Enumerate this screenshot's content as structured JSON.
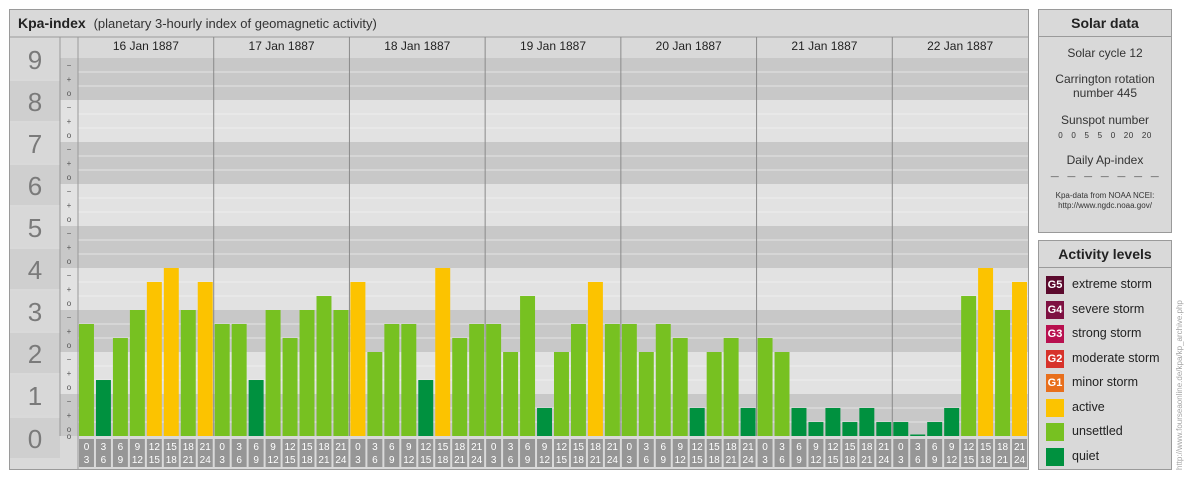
{
  "title": "Kpa-index",
  "subtitle": "(planetary 3-hourly index of geomagnetic activity)",
  "chart_data": {
    "type": "bar",
    "ylim": [
      0,
      9
    ],
    "y_ticks": [
      "0",
      "1",
      "2",
      "3",
      "4",
      "5",
      "6",
      "7",
      "8",
      "9"
    ],
    "minor_ticks": [
      "o",
      "+",
      "−"
    ],
    "days": [
      "16 Jan 1887",
      "17 Jan 1887",
      "18 Jan 1887",
      "19 Jan 1887",
      "20 Jan 1887",
      "21 Jan 1887",
      "22 Jan 1887"
    ],
    "interval_labels": [
      [
        "0",
        "3"
      ],
      [
        "3",
        "6"
      ],
      [
        "6",
        "9"
      ],
      [
        "9",
        "12"
      ],
      [
        "12",
        "15"
      ],
      [
        "15",
        "18"
      ],
      [
        "18",
        "21"
      ],
      [
        "21",
        "24"
      ]
    ],
    "values": [
      2.667,
      1.333,
      2.333,
      3.0,
      3.667,
      4.0,
      3.0,
      3.667,
      2.667,
      2.667,
      1.333,
      3.0,
      2.333,
      3.0,
      3.333,
      3.0,
      3.667,
      2.0,
      2.667,
      2.667,
      1.333,
      4.0,
      2.333,
      2.667,
      2.667,
      2.0,
      3.333,
      0.667,
      2.0,
      2.667,
      3.667,
      2.667,
      2.667,
      2.0,
      2.667,
      2.333,
      0.667,
      2.0,
      2.333,
      0.667,
      2.333,
      2.0,
      0.667,
      0.333,
      0.667,
      0.333,
      0.667,
      0.333,
      0.333,
      0.0,
      0.333,
      0.667,
      3.333,
      4.0,
      3.0,
      3.667
    ],
    "colors": {
      "quiet": "#00913f",
      "unsettled": "#77c121",
      "active": "#fcc300",
      "band_dark": "#c8c8c8",
      "band_light": "#e2e2e2",
      "axis_box": "#969696"
    }
  },
  "solar": {
    "header": "Solar data",
    "cycle": "Solar cycle 12",
    "carrington_line1": "Carrington rotation",
    "carrington_line2": "number 445",
    "sunspot_title": "Sunspot number",
    "sunspot_values": "0   0   5   5   0   20   20",
    "ap_title": "Daily Ap-index",
    "ap_values": "—   —   —   —   —   —   —",
    "credit_line1": "Kpa-data from NOAA NCEI:",
    "credit_line2": "http://www.ngdc.noaa.gov/"
  },
  "activity": {
    "header": "Activity levels",
    "levels": [
      {
        "code": "G5",
        "label": "extreme storm",
        "color": "#5b0a2d"
      },
      {
        "code": "G4",
        "label": "severe storm",
        "color": "#7e1142"
      },
      {
        "code": "G3",
        "label": "strong storm",
        "color": "#b8104f"
      },
      {
        "code": "G2",
        "label": "moderate storm",
        "color": "#d7322a"
      },
      {
        "code": "G1",
        "label": "minor storm",
        "color": "#e86f1c"
      },
      {
        "code": "",
        "label": "active",
        "color": "#fcc300"
      },
      {
        "code": "",
        "label": "unsettled",
        "color": "#77c121"
      },
      {
        "code": "",
        "label": "quiet",
        "color": "#00913f"
      }
    ]
  },
  "side_url": "http://www.fourseaonline.de/kpa/kp_archive.php"
}
